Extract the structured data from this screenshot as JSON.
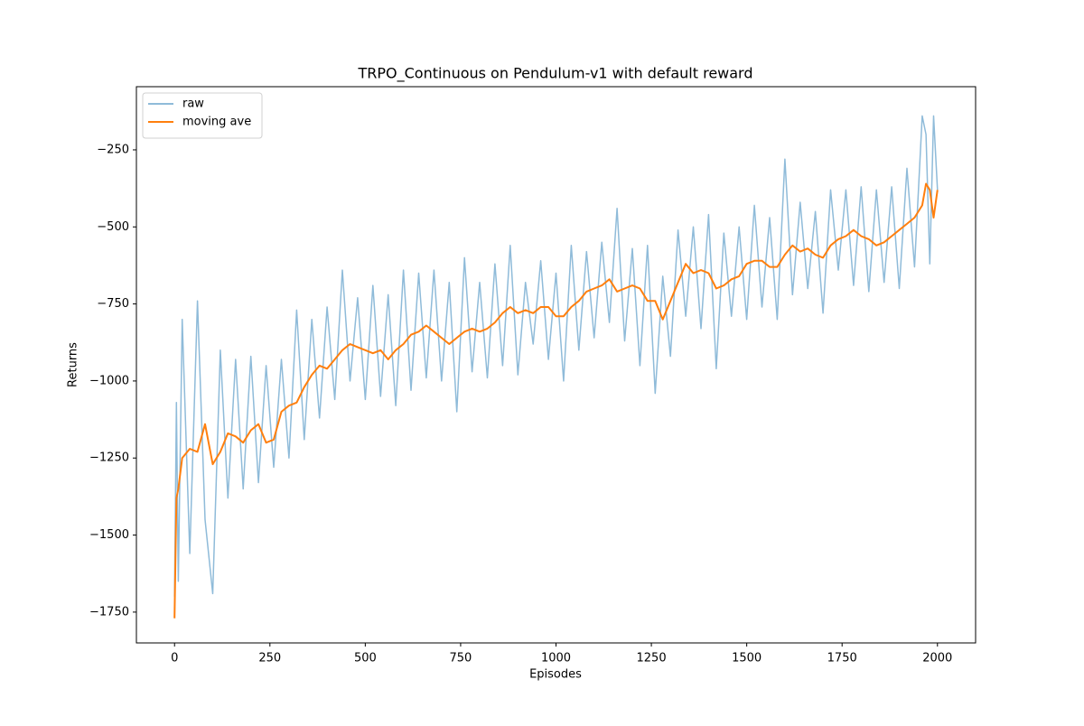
{
  "chart_data": {
    "type": "line",
    "title": "TRPO_Continuous on Pendulum-v1 with default reward",
    "x_label": "Episodes",
    "y_label": "Returns",
    "x": [
      0,
      5,
      10,
      20,
      40,
      60,
      80,
      100,
      120,
      140,
      160,
      180,
      200,
      220,
      240,
      260,
      280,
      300,
      320,
      340,
      360,
      380,
      400,
      420,
      440,
      460,
      480,
      500,
      520,
      540,
      560,
      580,
      600,
      620,
      640,
      660,
      680,
      700,
      720,
      740,
      760,
      780,
      800,
      820,
      840,
      860,
      880,
      900,
      920,
      940,
      960,
      980,
      1000,
      1020,
      1040,
      1060,
      1080,
      1100,
      1120,
      1140,
      1160,
      1180,
      1200,
      1220,
      1240,
      1260,
      1280,
      1300,
      1320,
      1340,
      1360,
      1380,
      1400,
      1420,
      1440,
      1460,
      1480,
      1500,
      1520,
      1540,
      1560,
      1580,
      1600,
      1620,
      1640,
      1660,
      1680,
      1700,
      1720,
      1740,
      1760,
      1780,
      1800,
      1820,
      1840,
      1860,
      1880,
      1900,
      1920,
      1940,
      1960,
      1970,
      1980,
      1990,
      2000
    ],
    "series": [
      {
        "name": "raw",
        "color": "#8fbbd9",
        "values": [
          -1700,
          -1070,
          -1650,
          -800,
          -1560,
          -740,
          -1450,
          -1690,
          -900,
          -1380,
          -930,
          -1350,
          -920,
          -1330,
          -950,
          -1280,
          -930,
          -1250,
          -770,
          -1190,
          -800,
          -1120,
          -760,
          -1060,
          -640,
          -1000,
          -730,
          -1060,
          -690,
          -1050,
          -720,
          -1080,
          -640,
          -1030,
          -650,
          -990,
          -640,
          -1000,
          -680,
          -1100,
          -600,
          -970,
          -680,
          -990,
          -620,
          -950,
          -560,
          -980,
          -680,
          -880,
          -610,
          -930,
          -650,
          -1000,
          -560,
          -900,
          -580,
          -860,
          -550,
          -810,
          -440,
          -870,
          -570,
          -950,
          -560,
          -1040,
          -660,
          -920,
          -510,
          -790,
          -500,
          -830,
          -460,
          -960,
          -520,
          -790,
          -500,
          -800,
          -430,
          -760,
          -470,
          -800,
          -280,
          -720,
          -420,
          -700,
          -450,
          -780,
          -380,
          -640,
          -380,
          -690,
          -370,
          -710,
          -380,
          -680,
          -370,
          -700,
          -310,
          -630,
          -140,
          -200,
          -620,
          -140,
          -380
        ]
      },
      {
        "name": "moving ave",
        "color": "#ff7f0e",
        "values": [
          -1770,
          -1380,
          -1350,
          -1250,
          -1220,
          -1230,
          -1140,
          -1270,
          -1230,
          -1170,
          -1180,
          -1200,
          -1160,
          -1140,
          -1200,
          -1190,
          -1100,
          -1080,
          -1070,
          -1020,
          -980,
          -950,
          -960,
          -930,
          -900,
          -880,
          -890,
          -900,
          -910,
          -900,
          -930,
          -900,
          -880,
          -850,
          -840,
          -820,
          -840,
          -860,
          -880,
          -860,
          -840,
          -830,
          -840,
          -830,
          -810,
          -780,
          -760,
          -780,
          -770,
          -780,
          -760,
          -760,
          -790,
          -790,
          -760,
          -740,
          -710,
          -700,
          -690,
          -670,
          -710,
          -700,
          -690,
          -700,
          -740,
          -740,
          -800,
          -740,
          -680,
          -620,
          -650,
          -640,
          -650,
          -700,
          -690,
          -670,
          -660,
          -620,
          -610,
          -610,
          -630,
          -630,
          -590,
          -560,
          -580,
          -570,
          -590,
          -600,
          -560,
          -540,
          -530,
          -510,
          -530,
          -540,
          -560,
          -550,
          -530,
          -510,
          -490,
          -470,
          -430,
          -360,
          -380,
          -470,
          -380
        ]
      }
    ],
    "xlim": [
      -100,
      2100
    ],
    "xticks": [
      0,
      250,
      500,
      750,
      1000,
      1250,
      1500,
      1750,
      2000
    ],
    "ylim": [
      -1850,
      -45
    ],
    "yticks": [
      {
        "value": -1750,
        "label": "−1750"
      },
      {
        "value": -1500,
        "label": "−1500"
      },
      {
        "value": -1250,
        "label": "−1250"
      },
      {
        "value": -1000,
        "label": "−1000"
      },
      {
        "value": -750,
        "label": "−750"
      },
      {
        "value": -500,
        "label": "−500"
      },
      {
        "value": -250,
        "label": "−250"
      }
    ],
    "legend": "upper left",
    "grid": false
  }
}
